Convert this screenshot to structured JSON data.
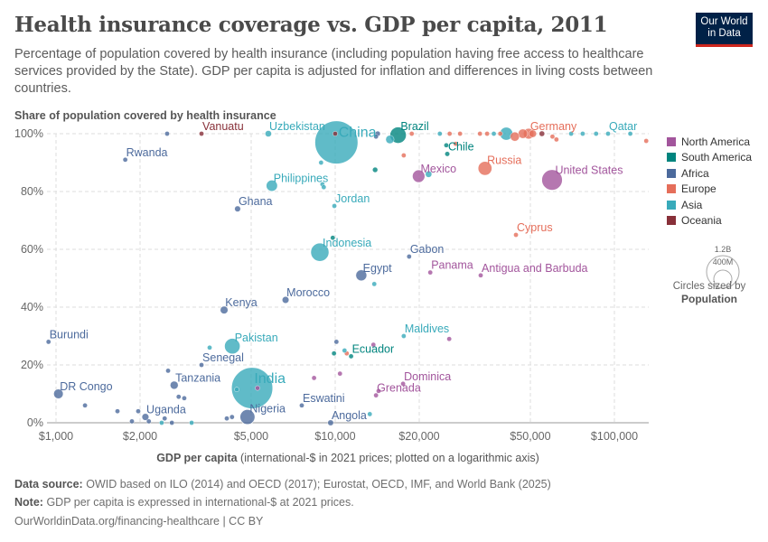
{
  "title": "Health insurance coverage vs. GDP per capita, 2011",
  "subtitle": "Percentage of population covered by health insurance (including population having free access to healthcare services provided by the State). GDP per capita is adjusted for inflation and differences in living costs between countries.",
  "logo": {
    "line1": "Our World",
    "line2": "in Data"
  },
  "legend": {
    "items": [
      {
        "label": "North America",
        "color": "#a2559c"
      },
      {
        "label": "South America",
        "color": "#00847e"
      },
      {
        "label": "Africa",
        "color": "#4c6a9c"
      },
      {
        "label": "Europe",
        "color": "#e56e5a"
      },
      {
        "label": "Asia",
        "color": "#38aaba"
      },
      {
        "label": "Oceania",
        "color": "#883039"
      }
    ],
    "size_big": "1.2B",
    "size_small": "400M",
    "size_caption": "Circles sized by",
    "size_variable": "Population"
  },
  "footer": {
    "source_label": "Data source:",
    "source": "OWID based on ILO (2014) and OECD (2017); Eurostat, OECD, IMF, and World Bank (2025)",
    "note_label": "Note:",
    "note": "GDP per capita is expressed in international-$ at 2021 prices.",
    "link": "OurWorldinData.org/financing-healthcare | CC BY"
  },
  "chart_data": {
    "type": "scatter",
    "title": "Health insurance coverage vs. GDP per capita, 2011",
    "ylabel": "Share of population covered by health insurance",
    "xlabel": "GDP per capita (international-$ in 2021 prices; plotted on a logarithmic axis)",
    "x_scale": "log",
    "xlim": [
      930,
      132000
    ],
    "ylim": [
      0,
      100
    ],
    "x_ticks": [
      {
        "v": 1000,
        "l": "$1,000"
      },
      {
        "v": 2000,
        "l": "$2,000"
      },
      {
        "v": 5000,
        "l": "$5,000"
      },
      {
        "v": 10000,
        "l": "$10,000"
      },
      {
        "v": 20000,
        "l": "$20,000"
      },
      {
        "v": 50000,
        "l": "$50,000"
      },
      {
        "v": 100000,
        "l": "$100,000"
      }
    ],
    "y_ticks": [
      {
        "v": 0,
        "l": "0%"
      },
      {
        "v": 20,
        "l": "20%"
      },
      {
        "v": 40,
        "l": "40%"
      },
      {
        "v": 60,
        "l": "60%"
      },
      {
        "v": 80,
        "l": "80%"
      },
      {
        "v": 100,
        "l": "100%"
      }
    ],
    "grid": true,
    "legend_position": "right",
    "points": [
      {
        "name": "China",
        "x": 10100,
        "y": 97,
        "region": "Asia",
        "pop": 1350
      },
      {
        "name": "India",
        "x": 5040,
        "y": 12,
        "region": "Asia",
        "pop": 1240
      },
      {
        "name": "United States",
        "x": 59800,
        "y": 84,
        "region": "North America",
        "pop": 312
      },
      {
        "name": "Indonesia",
        "x": 8810,
        "y": 59,
        "region": "Asia",
        "pop": 245
      },
      {
        "name": "Brazil",
        "x": 16800,
        "y": 99.5,
        "region": "South America",
        "pop": 197
      },
      {
        "name": "Pakistan",
        "x": 4280,
        "y": 26.5,
        "region": "Asia",
        "pop": 180
      },
      {
        "name": "Nigeria",
        "x": 4850,
        "y": 2,
        "region": "Africa",
        "pop": 165
      },
      {
        "name": "Russia",
        "x": 34400,
        "y": 88,
        "region": "Europe",
        "pop": 143
      },
      {
        "name": "Mexico",
        "x": 19900,
        "y": 85.3,
        "region": "North America",
        "pop": 117
      },
      {
        "name": "Philippines",
        "x": 5930,
        "y": 82,
        "region": "Asia",
        "pop": 95
      },
      {
        "name": "Egypt",
        "x": 12400,
        "y": 51,
        "region": "Africa",
        "pop": 85
      },
      {
        "name": "Germany",
        "x": 49300,
        "y": 100,
        "region": "Europe",
        "pop": 80
      },
      {
        "name": "DR Congo",
        "x": 1020,
        "y": 10,
        "region": "Africa",
        "pop": 65
      },
      {
        "name": "Tanzania",
        "x": 2650,
        "y": 13,
        "region": "Africa",
        "pop": 46
      },
      {
        "name": "Kenya",
        "x": 4000,
        "y": 39,
        "region": "Africa",
        "pop": 42
      },
      {
        "name": "Uganda",
        "x": 2090,
        "y": 2,
        "region": "Africa",
        "pop": 34
      },
      {
        "name": "Morocco",
        "x": 6640,
        "y": 42.5,
        "region": "Africa",
        "pop": 33
      },
      {
        "name": "Uzbekistan",
        "x": 5760,
        "y": 100,
        "region": "Asia",
        "pop": 29
      },
      {
        "name": "Ghana",
        "x": 4470,
        "y": 74,
        "region": "Africa",
        "pop": 25
      },
      {
        "name": "Angola",
        "x": 9630,
        "y": 0,
        "region": "Africa",
        "pop": 24
      },
      {
        "name": "Chile",
        "x": 25200,
        "y": 93,
        "region": "South America",
        "pop": 17
      },
      {
        "name": "Ecuador",
        "x": 11400,
        "y": 23,
        "region": "South America",
        "pop": 15
      },
      {
        "name": "Senegal",
        "x": 3320,
        "y": 20,
        "region": "Africa",
        "pop": 13
      },
      {
        "name": "Rwanda",
        "x": 1770,
        "y": 91,
        "region": "Africa",
        "pop": 11
      },
      {
        "name": "Burundi",
        "x": 940,
        "y": 28,
        "region": "Africa",
        "pop": 9
      },
      {
        "name": "Jordan",
        "x": 9930,
        "y": 75,
        "region": "Asia",
        "pop": 7
      },
      {
        "name": "Gabon",
        "x": 18400,
        "y": 57.5,
        "region": "Africa",
        "pop": 1.7
      },
      {
        "name": "Panama",
        "x": 21900,
        "y": 52,
        "region": "North America",
        "pop": 3.7
      },
      {
        "name": "Eswatini",
        "x": 7590,
        "y": 6,
        "region": "Africa",
        "pop": 1.1
      },
      {
        "name": "Cyprus",
        "x": 44400,
        "y": 65,
        "region": "Europe",
        "pop": 1.1
      },
      {
        "name": "Qatar",
        "x": 94900,
        "y": 100,
        "region": "Asia",
        "pop": 1.8
      },
      {
        "name": "Maldives",
        "x": 17600,
        "y": 30,
        "region": "Asia",
        "pop": 0.4
      },
      {
        "name": "Vanuatu",
        "x": 3320,
        "y": 100,
        "region": "Oceania",
        "pop": 0.24
      },
      {
        "name": "Antigua and Barbuda",
        "x": 33200,
        "y": 51,
        "region": "North America",
        "pop": 0.09
      },
      {
        "name": "Dominica",
        "x": 17500,
        "y": 13.5,
        "region": "North America",
        "pop": 0.07
      },
      {
        "name": "Grenada",
        "x": 14000,
        "y": 9.5,
        "region": "North America",
        "pop": 0.1
      },
      {
        "x": 2500,
        "y": 100,
        "region": "Africa",
        "pop": 2
      },
      {
        "x": 10000,
        "y": 100,
        "region": "Oceania",
        "pop": 1
      },
      {
        "x": 14200,
        "y": 100,
        "region": "Africa",
        "pop": 20
      },
      {
        "x": 18800,
        "y": 100,
        "region": "Europe",
        "pop": 2
      },
      {
        "x": 23700,
        "y": 100,
        "region": "Asia",
        "pop": 3
      },
      {
        "x": 25700,
        "y": 100,
        "region": "Europe",
        "pop": 4
      },
      {
        "x": 28000,
        "y": 100,
        "region": "Europe",
        "pop": 2
      },
      {
        "x": 33000,
        "y": 100,
        "region": "Europe",
        "pop": 5
      },
      {
        "x": 35000,
        "y": 100,
        "region": "Europe",
        "pop": 10
      },
      {
        "x": 37000,
        "y": 100,
        "region": "Asia",
        "pop": 8
      },
      {
        "x": 39000,
        "y": 100,
        "region": "Europe",
        "pop": 10
      },
      {
        "x": 41000,
        "y": 100,
        "region": "Asia",
        "pop": 127
      },
      {
        "x": 44000,
        "y": 99,
        "region": "Europe",
        "pop": 60
      },
      {
        "x": 47000,
        "y": 100,
        "region": "Europe",
        "pop": 63
      },
      {
        "x": 51000,
        "y": 100,
        "region": "Europe",
        "pop": 40
      },
      {
        "x": 55000,
        "y": 100,
        "region": "Oceania",
        "pop": 22
      },
      {
        "x": 60000,
        "y": 99,
        "region": "Europe",
        "pop": 10
      },
      {
        "x": 62000,
        "y": 98,
        "region": "Europe",
        "pop": 5
      },
      {
        "x": 70000,
        "y": 100,
        "region": "Asia",
        "pop": 2
      },
      {
        "x": 77000,
        "y": 100,
        "region": "Asia",
        "pop": 3
      },
      {
        "x": 86000,
        "y": 100,
        "region": "Asia",
        "pop": 2
      },
      {
        "x": 114000,
        "y": 100,
        "region": "Asia",
        "pop": 2
      },
      {
        "x": 130000,
        "y": 97.5,
        "region": "Europe",
        "pop": 0.5
      },
      {
        "x": 15700,
        "y": 98,
        "region": "Asia",
        "pop": 50
      },
      {
        "x": 14000,
        "y": 99,
        "region": "Africa",
        "pop": 3
      },
      {
        "x": 8900,
        "y": 90,
        "region": "Asia",
        "pop": 3
      },
      {
        "x": 13900,
        "y": 87.5,
        "region": "South America",
        "pop": 20
      },
      {
        "x": 17600,
        "y": 92.5,
        "region": "Europe",
        "pop": 2
      },
      {
        "x": 27000,
        "y": 96.5,
        "region": "Europe",
        "pop": 2
      },
      {
        "x": 25000,
        "y": 96,
        "region": "South America",
        "pop": 3
      },
      {
        "x": 21600,
        "y": 86,
        "region": "Asia",
        "pop": 30
      },
      {
        "x": 9000,
        "y": 82.5,
        "region": "Asia",
        "pop": 3
      },
      {
        "x": 9100,
        "y": 81.5,
        "region": "Asia",
        "pop": 3
      },
      {
        "x": 9800,
        "y": 64,
        "region": "South America",
        "pop": 1
      },
      {
        "x": 13800,
        "y": 48,
        "region": "Asia",
        "pop": 1
      },
      {
        "x": 10100,
        "y": 28,
        "region": "Africa",
        "pop": 2
      },
      {
        "x": 25600,
        "y": 29,
        "region": "North America",
        "pop": 1
      },
      {
        "x": 13700,
        "y": 27,
        "region": "North America",
        "pop": 1
      },
      {
        "x": 10800,
        "y": 25,
        "region": "Asia",
        "pop": 1
      },
      {
        "x": 11000,
        "y": 24,
        "region": "Europe",
        "pop": 2
      },
      {
        "x": 9900,
        "y": 24,
        "region": "South America",
        "pop": 1
      },
      {
        "x": 8400,
        "y": 15.5,
        "region": "North America",
        "pop": 1
      },
      {
        "x": 10400,
        "y": 17,
        "region": "North America",
        "pop": 1
      },
      {
        "x": 2520,
        "y": 18,
        "region": "Africa",
        "pop": 2
      },
      {
        "x": 3550,
        "y": 26,
        "region": "Asia",
        "pop": 1
      },
      {
        "x": 4440,
        "y": 11.5,
        "region": "Asia",
        "pop": 2
      },
      {
        "x": 5270,
        "y": 12,
        "region": "North America",
        "pop": 1
      },
      {
        "x": 2750,
        "y": 9,
        "region": "Africa",
        "pop": 3
      },
      {
        "x": 2880,
        "y": 8.5,
        "region": "Africa",
        "pop": 2
      },
      {
        "x": 1270,
        "y": 6,
        "region": "Africa",
        "pop": 2
      },
      {
        "x": 1660,
        "y": 4,
        "region": "Africa",
        "pop": 4
      },
      {
        "x": 1970,
        "y": 4,
        "region": "Africa",
        "pop": 2
      },
      {
        "x": 1870,
        "y": 0.5,
        "region": "Africa",
        "pop": 2
      },
      {
        "x": 2150,
        "y": 0.5,
        "region": "Africa",
        "pop": 3
      },
      {
        "x": 2450,
        "y": 1.5,
        "region": "Africa",
        "pop": 3
      },
      {
        "x": 2390,
        "y": 0,
        "region": "Asia",
        "pop": 3
      },
      {
        "x": 2600,
        "y": 0,
        "region": "Africa",
        "pop": 2
      },
      {
        "x": 3060,
        "y": 0,
        "region": "Asia",
        "pop": 6
      },
      {
        "x": 4090,
        "y": 1.5,
        "region": "Africa",
        "pop": 3
      },
      {
        "x": 4270,
        "y": 2,
        "region": "Africa",
        "pop": 4
      },
      {
        "x": 13300,
        "y": 3,
        "region": "Asia",
        "pop": 1
      },
      {
        "x": 14300,
        "y": 11,
        "region": "North America",
        "pop": 1
      }
    ]
  }
}
